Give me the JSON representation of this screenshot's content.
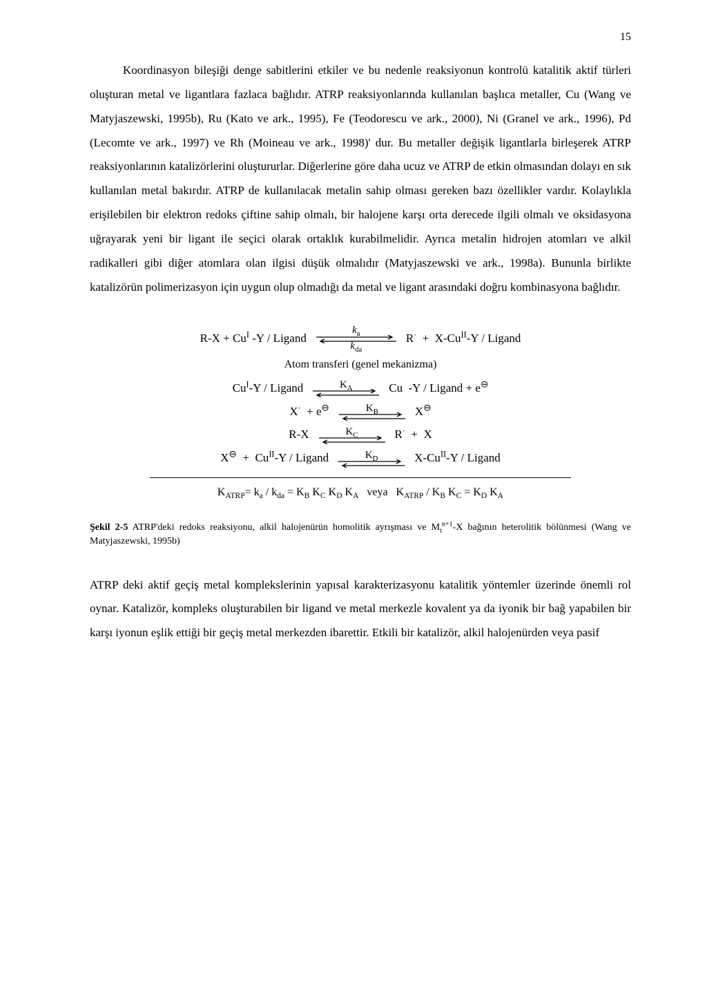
{
  "page_number": "15",
  "paragraph1": "Koordinasyon bileşiği denge sabitlerini etkiler ve bu nedenle reaksiyonun kontrolü katalitik aktif türleri oluşturan metal ve ligantlara fazlaca bağlıdır. ATRP reaksiyonlarında kullanılan başlıca metaller, Cu (Wang ve Matyjaszewski, 1995b), Ru (Kato ve ark., 1995), Fe (Teodorescu ve ark., 2000), Ni (Granel ve ark., 1996), Pd (Lecomte ve ark., 1997) ve Rh (Moineau ve ark., 1998)' dur. Bu metaller değişik ligantlarla birleşerek ATRP reaksiyonlarının katalizörlerini oluştururlar. Diğerlerine göre daha ucuz ve ATRP de etkin olmasından dolayı en sık kullanılan metal bakırdır. ATRP de kullanılacak metalin sahip olması gereken bazı özellikler vardır. Kolaylıkla erişilebilen bir elektron redoks çiftine sahip olmalı, bir halojene karşı orta derecede ilgili olmalı ve oksidasyona uğrayarak yeni bir ligant ile seçici olarak ortaklık kurabilmelidir. Ayrıca metalin hidrojen atomları ve alkil radikalleri gibi diğer atomlara olan ilgisi düşük olmalıdır (Matyjaszewski ve ark., 1998a). Bununla birlikte katalizörün polimerizasyon için uygun olup olmadığı da metal ve ligant arasındaki doğru kombinasyona bağlıdır.",
  "equations": {
    "eq1_left": "R-X + Cu<sup>I</sup> -Y / Ligand",
    "eq1_ka": "<i>k</i><sub>a</sub>",
    "eq1_kda": "<i>k</i><sub>da</sub>",
    "eq1_right": "R<span class=\"radical-dot\">·</span> &nbsp;+&nbsp; X-Cu<sup>II</sup>-Y / Ligand",
    "subtitle": "Atom transferi (genel mekanizma)",
    "eq2_left": "Cu<sup>I</sup>-Y / Ligand",
    "eq2_k": "K<sub>A</sub>",
    "eq2_right": "Cu &nbsp;-Y / Ligand + e<span class=\"circ-minus\">⊖</span>",
    "eq3_left": "X<span class=\"radical-dot\">·</span> &nbsp;+ e<span class=\"circ-minus\">⊖</span>",
    "eq3_k": "K<sub>B</sub>",
    "eq3_right": "X<span class=\"circ-minus\">⊖</span>",
    "eq4_left": "R-X",
    "eq4_k": "K<sub>C</sub>",
    "eq4_right": "R<span class=\"radical-dot\">·</span> &nbsp;+&nbsp; X",
    "eq5_left": "X<span class=\"circ-minus\">⊖</span> &nbsp;+&nbsp; Cu<sup>II</sup>-Y / Ligand",
    "eq5_k": "K<sub>D</sub>",
    "eq5_right": "X-Cu<sup>II</sup>-Y / Ligand",
    "final": "K<sub>ATRP</sub>= k<sub>a</sub> / k<sub>da</sub> = K<sub>B</sub> K<sub>C</sub> K<sub>D</sub> K<sub>A</sub>&nbsp;&nbsp;&nbsp;veya&nbsp;&nbsp;&nbsp;K<sub>ATRP</sub> / K<sub>B</sub> K<sub>C</sub> = K<sub>D</sub> K<sub>A</sub>"
  },
  "caption_label": "Şekil 2-5",
  "caption_text": " ATRP'deki redoks reaksiyonu, alkil halojenürün homolitik ayrışması ve M<sub>t</sub><sup>n+1</sup>-X bağının heterolitik bölünmesi (Wang ve Matyjaszewski, 1995b)",
  "paragraph2": "ATRP deki aktif geçiş metal komplekslerinin yapısal karakterizasyonu katalitik yöntemler üzerinde önemli rol oynar. Katalizör, kompleks oluşturabilen bir ligand ve metal merkezle kovalent ya da iyonik bir bağ yapabilen bir karşı iyonun eşlik ettiği bir geçiş metal merkezden ibarettir. Etkili bir katalizör, alkil halojenürden veya pasif",
  "svg": {
    "arrow_w_long": 120,
    "arrow_w_med": 100,
    "arrow_h": 10,
    "stroke": "#000"
  }
}
